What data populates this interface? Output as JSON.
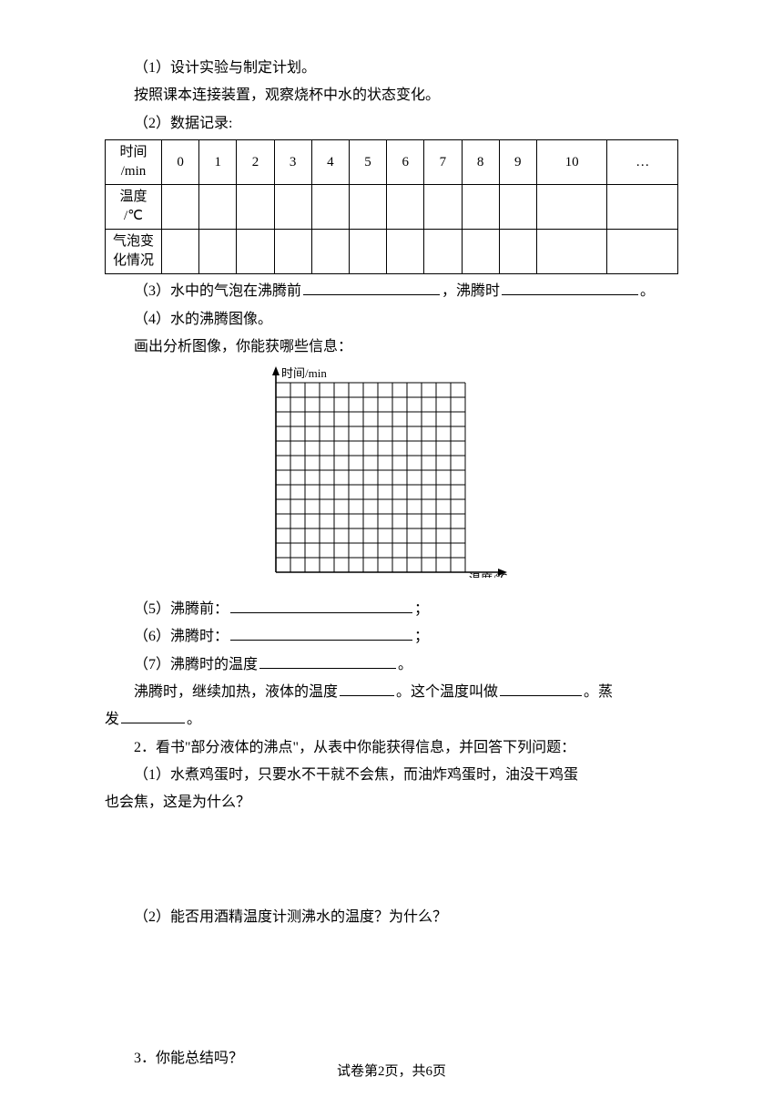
{
  "q1": {
    "line1": "（1）设计实验与制定计划。",
    "line2": "按照课本连接装置，观察烧杯中水的状态变化。",
    "line3": "（2）数据记录:"
  },
  "table": {
    "row1_hdr_a": "时间",
    "row1_hdr_b": "/min",
    "cols": [
      "0",
      "1",
      "2",
      "3",
      "4",
      "5",
      "6",
      "7",
      "8",
      "9",
      "10",
      "…"
    ],
    "row2_hdr_a": "温度",
    "row2_hdr_b": "/℃",
    "row3_hdr_a": "气泡变",
    "row3_hdr_b": "化情况"
  },
  "q3": {
    "pre": "（3）水中的气泡在沸腾前",
    "mid": "，沸腾时",
    "end": "。"
  },
  "q4": {
    "line1": "（4）水的沸腾图像。",
    "line2": "画出分析图像，你能获哪些信息："
  },
  "grid": {
    "y_label": "时间/min",
    "x_label": "温度/℃",
    "cells": 13,
    "cell_size": 16,
    "stroke": "#000000"
  },
  "q5": {
    "pre": "（5）沸腾前：",
    "end": "；"
  },
  "q6": {
    "pre": "（6）沸腾时：",
    "end": "；"
  },
  "q7": {
    "pre": "（7）沸腾时的温度",
    "end": "。"
  },
  "q7b": {
    "pre": "沸腾时，继续加热，液体的温度",
    "mid": "。这个温度叫做",
    "end1": "。蒸",
    "line2_pre": "发",
    "line2_end": "。"
  },
  "q2book": {
    "intro": "2．看书\"部分液体的沸点\"，从表中你能获得信息，并回答下列问题：",
    "p1a": "（1）水煮鸡蛋时，只要水不干就不会焦，而油炸鸡蛋时，油没干鸡蛋",
    "p1b": "也会焦，这是为什么？",
    "p2": "（2）能否用酒精温度计测沸水的温度？为什么？"
  },
  "q3sum": "3．你能总结吗？",
  "footer": {
    "pre": "试卷第",
    "page": "2",
    "mid": "页，共",
    "total": "6",
    "suf": "页"
  },
  "blanks": {
    "w_long": "150px",
    "w_med": "200px",
    "w_short": "60px",
    "w_name": "90px",
    "w_tiny": "70px"
  }
}
